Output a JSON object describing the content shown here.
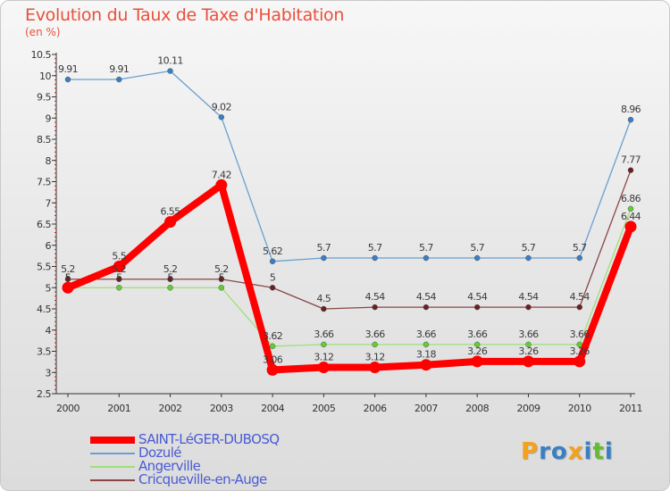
{
  "header": {
    "title": "Evolution du Taux de Taxe d'Habitation",
    "unit": "(en %)"
  },
  "chart_data": {
    "type": "line",
    "title": "Evolution du Taux de Taxe d'Habitation",
    "ylabel": "(en %)",
    "x": [
      "2000",
      "2001",
      "2002",
      "2003",
      "2004",
      "2005",
      "2006",
      "2007",
      "2008",
      "2009",
      "2010",
      "2011"
    ],
    "ylim": [
      2.5,
      10.5
    ],
    "yticks": [
      "2.5",
      "3",
      "3.5",
      "4",
      "4.5",
      "5",
      "5.5",
      "6",
      "6.5",
      "7",
      "7.5",
      "8",
      "8.5",
      "9",
      "9.5",
      "10",
      "10.5"
    ],
    "grid": false,
    "legend_position": "bottom-left",
    "series": [
      {
        "name": "Dozulé",
        "color": "#6a9fd0",
        "marker": "#3a7fc4",
        "values": [
          9.91,
          9.91,
          10.11,
          9.02,
          5.62,
          5.7,
          5.7,
          5.7,
          5.7,
          5.7,
          5.7,
          8.96
        ],
        "labels": [
          "9.91",
          "9.91",
          "10.11",
          "9.02",
          "5.62",
          "5.7",
          "5.7",
          "5.7",
          "5.7",
          "5.7",
          "5.7",
          "8.96"
        ]
      },
      {
        "name": "Cricqueville-en-Auge",
        "color": "#8a4646",
        "marker": "#6a2020",
        "values": [
          5.2,
          5.2,
          5.2,
          5.2,
          5.0,
          4.5,
          4.54,
          4.54,
          4.54,
          4.54,
          4.54,
          7.77
        ],
        "labels": [
          "5.2",
          "5.2",
          "5.2",
          "5.2",
          "5",
          "4.5",
          "4.54",
          "4.54",
          "4.54",
          "4.54",
          "4.54",
          "7.77"
        ]
      },
      {
        "name": "Angerville",
        "color": "#9ee07a",
        "marker": "#66cc33",
        "values": [
          5.0,
          5.0,
          5.0,
          5.0,
          3.62,
          3.66,
          3.66,
          3.66,
          3.66,
          3.66,
          3.66,
          6.86
        ],
        "labels": [
          "5",
          "5",
          "5",
          "5",
          "3.62",
          "3.66",
          "3.66",
          "3.66",
          "3.66",
          "3.66",
          "3.66",
          "6.86"
        ]
      },
      {
        "name": "SAINT-LéGER-DUBOSQ",
        "color": "#ff0000",
        "marker": "#ff0000",
        "values": [
          5.0,
          5.5,
          6.55,
          7.42,
          3.06,
          3.12,
          3.12,
          3.18,
          3.26,
          3.26,
          3.26,
          6.44
        ],
        "labels": [
          "5",
          "5.5",
          "6.55",
          "7.42",
          "3.06",
          "3.12",
          "3.12",
          "3.18",
          "3.26",
          "3.26",
          "3.26",
          "6.44"
        ]
      }
    ]
  },
  "legend": [
    {
      "label": "SAINT-LéGER-DUBOSQ",
      "color": "#ff0000"
    },
    {
      "label": "Dozulé",
      "color": "#6a9fd0"
    },
    {
      "label": "Angerville",
      "color": "#9ee07a"
    },
    {
      "label": "Cricqueville-en-Auge",
      "color": "#8a4646"
    }
  ],
  "logo": {
    "letters": [
      "P",
      "r",
      "o",
      "x",
      "i",
      "t",
      "i"
    ],
    "colors": [
      "#f3a21b",
      "#3a7fc4",
      "#3a7fc4",
      "#f3a21b",
      "#3a7fc4",
      "#66bb33",
      "#3a7fc4"
    ]
  }
}
